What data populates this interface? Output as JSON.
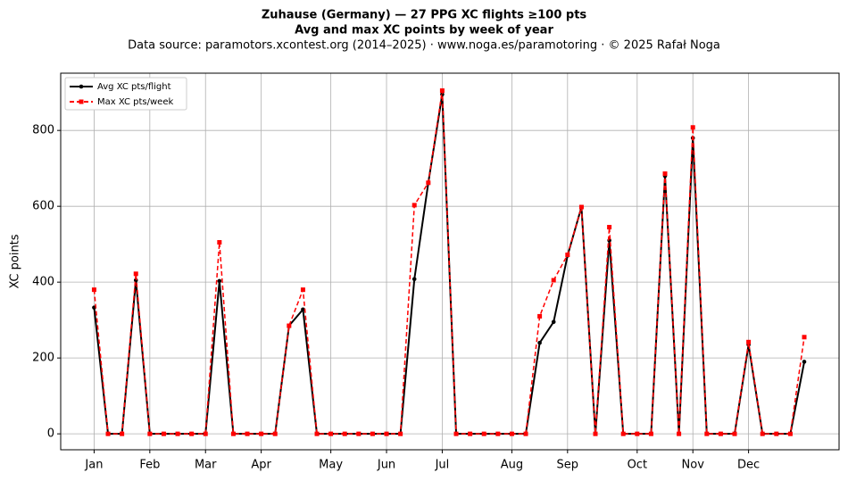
{
  "chart_data": {
    "type": "line",
    "title": "Zuhause (Germany)  —  27 PPG XC flights ≥100 pts",
    "subtitle": "Avg and max XC points by week of year",
    "source": "Data source: paramotors.xcontest.org (2014–2025)  ·  www.noga.es/paramotoring  ·  © 2025 Rafał Noga",
    "y_label": "XC points",
    "x": [
      1,
      2,
      3,
      4,
      5,
      6,
      7,
      8,
      9,
      10,
      11,
      12,
      13,
      14,
      15,
      16,
      17,
      18,
      19,
      20,
      21,
      22,
      23,
      24,
      25,
      26,
      27,
      28,
      29,
      30,
      31,
      32,
      33,
      34,
      35,
      36,
      37,
      38,
      39,
      40,
      41,
      42,
      43,
      44,
      45,
      46,
      47,
      48,
      49,
      50,
      51,
      52
    ],
    "series": [
      {
        "name": "Avg XC pts/flight",
        "color": "#000000",
        "dash": "solid",
        "marker": "circle",
        "values": [
          333,
          0,
          0,
          405,
          0,
          0,
          0,
          0,
          0,
          403,
          0,
          0,
          0,
          0,
          285,
          328,
          0,
          0,
          0,
          0,
          0,
          0,
          0,
          408,
          662,
          895,
          0,
          0,
          0,
          0,
          0,
          0,
          240,
          295,
          470,
          598,
          0,
          510,
          0,
          0,
          0,
          680,
          0,
          780,
          0,
          0,
          0,
          235,
          0,
          0,
          0,
          190
        ]
      },
      {
        "name": "Max XC pts/week",
        "color": "#ff0000",
        "dash": "dashed",
        "marker": "square",
        "values": [
          380,
          0,
          0,
          422,
          0,
          0,
          0,
          0,
          0,
          505,
          0,
          0,
          0,
          0,
          285,
          380,
          0,
          0,
          0,
          0,
          0,
          0,
          0,
          603,
          662,
          905,
          0,
          0,
          0,
          0,
          0,
          0,
          310,
          405,
          472,
          598,
          0,
          545,
          0,
          0,
          0,
          686,
          0,
          808,
          0,
          0,
          0,
          242,
          0,
          0,
          0,
          255
        ]
      }
    ],
    "xlim": [
      -1.4,
      54.5
    ],
    "xticks": [
      {
        "value": 1,
        "label": "Jan"
      },
      {
        "value": 5,
        "label": "Feb"
      },
      {
        "value": 9,
        "label": "Mar"
      },
      {
        "value": 13,
        "label": "Apr"
      },
      {
        "value": 18,
        "label": "May"
      },
      {
        "value": 22,
        "label": "Jun"
      },
      {
        "value": 26,
        "label": "Jul"
      },
      {
        "value": 31,
        "label": "Aug"
      },
      {
        "value": 35,
        "label": "Sep"
      },
      {
        "value": 40,
        "label": "Oct"
      },
      {
        "value": 44,
        "label": "Nov"
      },
      {
        "value": 48,
        "label": "Dec"
      }
    ],
    "ylim": [
      -42,
      951
    ],
    "yticks": [
      0,
      200,
      400,
      600,
      800
    ],
    "grid": true,
    "legend": "upper left"
  }
}
